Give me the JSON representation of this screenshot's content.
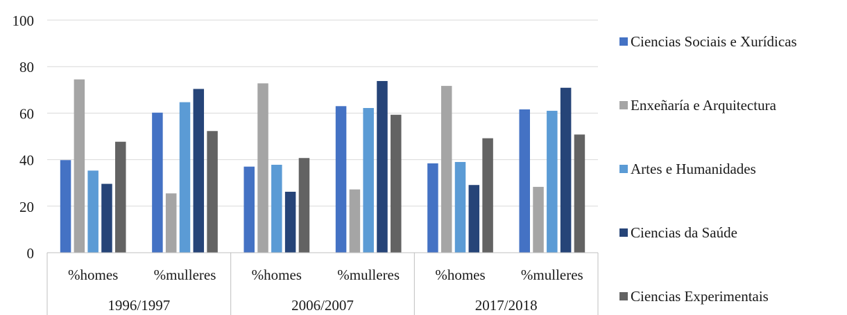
{
  "chart_data": {
    "type": "bar",
    "groups": [
      {
        "label": "1996/1997",
        "subcategories": [
          "%homes",
          "%mulleres"
        ]
      },
      {
        "label": "2006/2007",
        "subcategories": [
          "%homes",
          "%mulleres"
        ]
      },
      {
        "label": "2017/2018",
        "subcategories": [
          "%homes",
          "%mulleres"
        ]
      }
    ],
    "categories": [
      "%homes",
      "%mulleres",
      "%homes",
      "%mulleres",
      "%homes",
      "%mulleres"
    ],
    "series": [
      {
        "name": "Ciencias Sociais e Xurídicas",
        "color": "#4472C4",
        "values": [
          39.8,
          60.2,
          37.0,
          63.0,
          38.4,
          61.6
        ]
      },
      {
        "name": "Enxeñaría e Arquitectura",
        "color": "#A5A5A5",
        "values": [
          74.5,
          25.5,
          72.8,
          27.2,
          71.7,
          28.3
        ]
      },
      {
        "name": "Artes e Humanidades",
        "color": "#5B9BD5",
        "values": [
          35.3,
          64.7,
          37.8,
          62.2,
          39.0,
          61.0
        ]
      },
      {
        "name": "Ciencias da Saúde",
        "color": "#264478",
        "values": [
          29.6,
          70.4,
          26.2,
          73.8,
          29.1,
          70.9
        ]
      },
      {
        "name": "Ciencias Experimentais",
        "color": "#636363",
        "values": [
          47.7,
          52.3,
          40.7,
          59.3,
          49.2,
          50.8
        ]
      }
    ],
    "ylim": [
      0,
      100
    ],
    "yticks": [
      0,
      20,
      40,
      60,
      80,
      100
    ],
    "grid": true,
    "legend_position": "right"
  }
}
